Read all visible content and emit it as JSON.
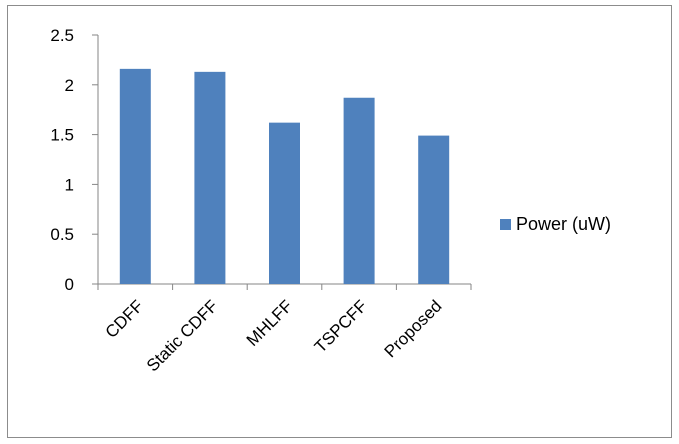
{
  "chart_data": {
    "type": "bar",
    "categories": [
      "CDFF",
      "Static CDFF",
      "MHLFF",
      "TSPCFF",
      "Proposed"
    ],
    "series": [
      {
        "name": "Power (uW)",
        "values": [
          2.16,
          2.13,
          1.62,
          1.87,
          1.49
        ],
        "color": "#4F81BD"
      }
    ],
    "ylim": [
      0,
      2.5
    ],
    "yticks": [
      "0",
      "0.5",
      "1",
      "1.5",
      "2",
      "2.5"
    ],
    "grid": false,
    "legend": "right"
  }
}
